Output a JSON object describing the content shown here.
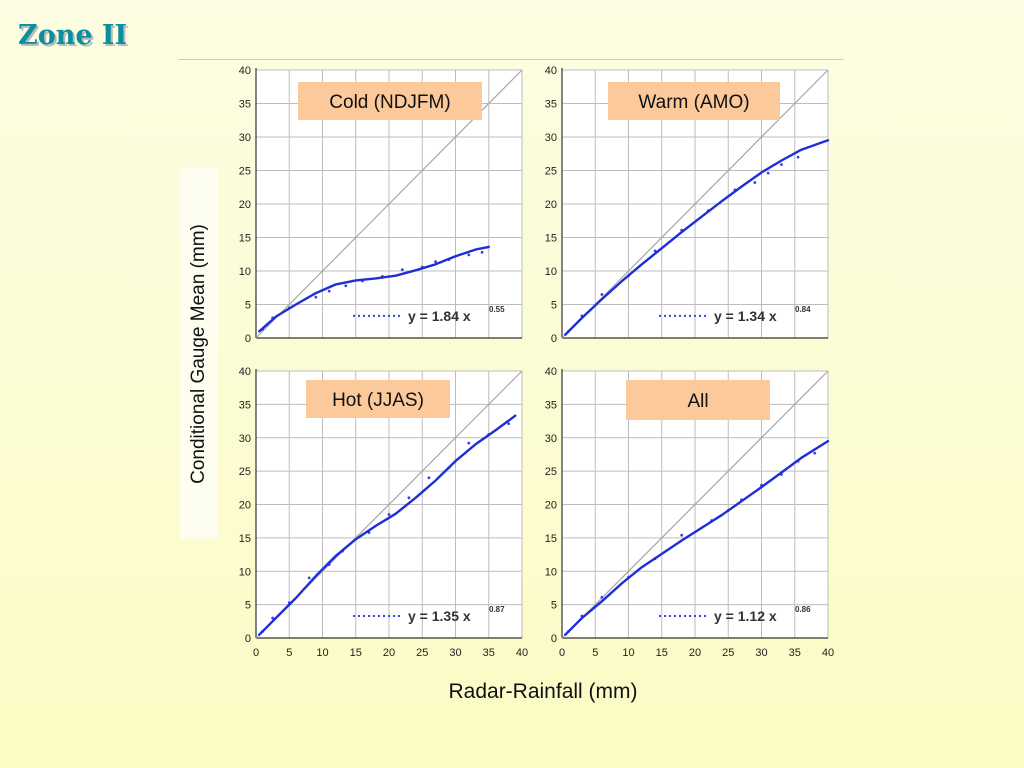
{
  "slide": {
    "title": "Zone II"
  },
  "colors": {
    "title": "#0b8f9e",
    "fit_line": "#1f2ed6",
    "points": "#3344e0",
    "one_to_one": "#a6a6a6",
    "label_box": "#fcc99b"
  },
  "axes": {
    "xlabel": "Radar-Rainfall (mm)",
    "ylabel": "Conditional Gauge Mean (mm)"
  },
  "chart_data": [
    {
      "type": "scatter",
      "panel": "top-left",
      "label": "Cold (NDJFM)",
      "equation": "y = 1.84 x",
      "exponent": "0.55",
      "xlim": [
        0,
        40
      ],
      "ylim": [
        0,
        40
      ],
      "grid": true,
      "xticks": [
        0,
        5,
        10,
        15,
        20,
        25,
        30,
        35,
        40
      ],
      "yticks": [
        0,
        5,
        10,
        15,
        20,
        25,
        30,
        35,
        40
      ],
      "show_xticks": false,
      "one_to_one_line": true,
      "fit_curve": {
        "x": [
          0.5,
          3,
          6,
          9,
          12,
          15,
          18,
          21,
          24,
          27,
          30,
          33,
          35
        ],
        "y": [
          1,
          3.2,
          5,
          6.7,
          8,
          8.6,
          8.9,
          9.3,
          10.1,
          11,
          12.2,
          13.2,
          13.6
        ]
      },
      "points": {
        "x": [
          1,
          2.5,
          5,
          9,
          11,
          13.5,
          16,
          19,
          22,
          25,
          27,
          29,
          32,
          34
        ],
        "y": [
          1.3,
          3,
          4.5,
          6.1,
          7,
          7.8,
          8.5,
          9.2,
          10.2,
          10.6,
          11.4,
          11.7,
          12.4,
          12.8
        ]
      }
    },
    {
      "type": "scatter",
      "panel": "top-right",
      "label": "Warm (AMO)",
      "equation": "y = 1.34 x",
      "exponent": "0.84",
      "xlim": [
        0,
        40
      ],
      "ylim": [
        0,
        40
      ],
      "grid": true,
      "xticks": [
        0,
        5,
        10,
        15,
        20,
        25,
        30,
        35,
        40
      ],
      "yticks": [
        0,
        5,
        10,
        15,
        20,
        25,
        30,
        35,
        40
      ],
      "show_xticks": false,
      "one_to_one_line": true,
      "fit_curve": {
        "x": [
          0.5,
          3,
          6,
          9,
          12,
          15,
          18,
          21,
          24,
          27,
          30,
          33,
          36,
          40
        ],
        "y": [
          0.5,
          3,
          5.8,
          8.5,
          11,
          13.4,
          15.8,
          18.1,
          20.4,
          22.6,
          24.7,
          26.5,
          28.1,
          29.5
        ]
      },
      "points": {
        "x": [
          1,
          3,
          6,
          10,
          14,
          18,
          22,
          26,
          29,
          31,
          33,
          35.5
        ],
        "y": [
          1,
          3.3,
          6.5,
          9.3,
          13,
          16.1,
          19,
          22.1,
          23.2,
          24.6,
          25.9,
          27
        ]
      }
    },
    {
      "type": "scatter",
      "panel": "bottom-left",
      "label": "Hot (JJAS)",
      "equation": "y = 1.35 x",
      "exponent": "0.87",
      "xlim": [
        0,
        40
      ],
      "ylim": [
        0,
        40
      ],
      "grid": true,
      "xticks": [
        0,
        5,
        10,
        15,
        20,
        25,
        30,
        35,
        40
      ],
      "yticks": [
        0,
        5,
        10,
        15,
        20,
        25,
        30,
        35,
        40
      ],
      "show_xticks": true,
      "one_to_one_line": true,
      "fit_curve": {
        "x": [
          0.5,
          3,
          6,
          9,
          12,
          15,
          18,
          21,
          24,
          27,
          30,
          33,
          36,
          39
        ],
        "y": [
          0.5,
          3,
          6,
          9.3,
          12.3,
          14.8,
          16.8,
          18.6,
          21,
          23.6,
          26.5,
          29,
          31.1,
          33.3
        ]
      },
      "points": {
        "x": [
          1,
          2.5,
          5,
          8,
          11,
          13,
          17,
          20,
          23,
          26,
          29,
          32,
          35,
          38
        ],
        "y": [
          1,
          3,
          5.3,
          9,
          11,
          13,
          15.8,
          18.5,
          21,
          24,
          25.5,
          29.2,
          30.5,
          32.1
        ]
      }
    },
    {
      "type": "scatter",
      "panel": "bottom-right",
      "label": "All",
      "equation": "y = 1.12 x",
      "exponent": "0.86",
      "xlim": [
        0,
        40
      ],
      "ylim": [
        0,
        40
      ],
      "grid": true,
      "xticks": [
        0,
        5,
        10,
        15,
        20,
        25,
        30,
        35,
        40
      ],
      "yticks": [
        0,
        5,
        10,
        15,
        20,
        25,
        30,
        35,
        40
      ],
      "show_xticks": true,
      "one_to_one_line": true,
      "fit_curve": {
        "x": [
          0.5,
          3,
          6,
          9,
          12,
          15,
          18,
          21,
          24,
          27,
          30,
          33,
          36,
          40
        ],
        "y": [
          0.5,
          3,
          5.5,
          8.2,
          10.6,
          12.6,
          14.6,
          16.5,
          18.4,
          20.5,
          22.6,
          24.8,
          27,
          29.5
        ]
      },
      "points": {
        "x": [
          1,
          3,
          6,
          10,
          14,
          18,
          22.5,
          25,
          27,
          30,
          33,
          35.5,
          38
        ],
        "y": [
          1,
          3.3,
          6.1,
          9.1,
          11.9,
          15.4,
          17.6,
          19.1,
          20.7,
          22.9,
          24.5,
          26.5,
          27.7
        ]
      }
    }
  ]
}
